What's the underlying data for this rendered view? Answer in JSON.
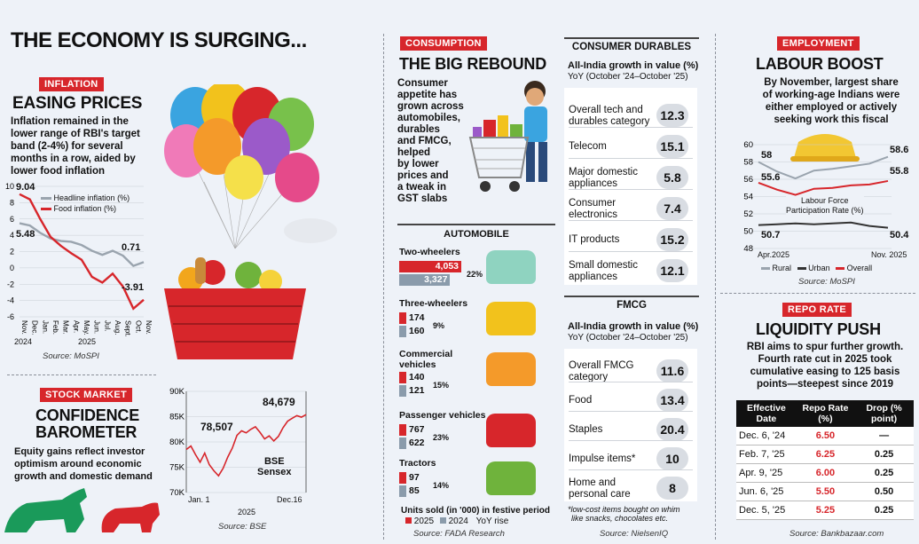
{
  "main_title": "THE ECONOMY IS SURGING...",
  "inflation": {
    "tag": "INFLATION",
    "title": "EASING PRICES",
    "body": [
      "Inflation remained in the",
      "lower range of RBI's target",
      "band (2-4%) for several",
      "months in a row, aided by",
      "lower food inflation"
    ],
    "legend_headline": "Headline inflation (%)",
    "legend_food": "Food inflation (%)",
    "source": "Source: MoSPI",
    "labels": {
      "food_start": "9.04",
      "head_start": "5.48",
      "head_end": "0.71",
      "food_end": "-3.91"
    },
    "year1": "2024",
    "year2": "2025"
  },
  "stock": {
    "tag": "STOCK MARKET",
    "title1": "CONFIDENCE",
    "title2": "BAROMETER",
    "body": [
      "Equity gains reflect investor",
      "optimism around economic",
      "growth and domestic demand"
    ],
    "label1": "78,507",
    "label2": "84,679",
    "index_name1": "BSE",
    "index_name2": "Sensex",
    "xstart": "Jan. 1",
    "xend": "Dec.16",
    "year": "2025",
    "source": "Source: BSE"
  },
  "consumption": {
    "tag": "CONSUMPTION",
    "title": "THE BIG REBOUND",
    "body": [
      "Consumer",
      "appetite has",
      "grown across",
      "automobiles,",
      "durables",
      "and FMCG,",
      "helped",
      "by lower",
      "prices and",
      "a tweak in",
      "GST slabs"
    ],
    "auto_head": "AUTOMOBILE",
    "units_note": "Units sold (in '000) in festive period",
    "legend_2025": "2025",
    "legend_2024": "2024",
    "legend_yoy": "YoY rise",
    "source": "Source: FADA Research"
  },
  "durables": {
    "head": "CONSUMER DURABLES",
    "sub1": "All-India growth in value (%)",
    "sub2": "YoY (October '24–October '25)",
    "rows": [
      {
        "label1": "Overall tech and",
        "label2": "durables category",
        "value": "12.3"
      },
      {
        "label1": "Telecom",
        "label2": "",
        "value": "15.1"
      },
      {
        "label1": "Major domestic",
        "label2": "appliances",
        "value": "5.8"
      },
      {
        "label1": "Consumer",
        "label2": "electronics",
        "value": "7.4"
      },
      {
        "label1": "IT products",
        "label2": "",
        "value": "15.2"
      },
      {
        "label1": "Small domestic",
        "label2": "appliances",
        "value": "12.1"
      }
    ]
  },
  "fmcg": {
    "head": "FMCG",
    "sub1": "All-India growth in value (%)",
    "sub2": "YoY (October '24–October '25)",
    "rows": [
      {
        "label1": "Overall FMCG",
        "label2": "category",
        "value": "11.6"
      },
      {
        "label1": "Food",
        "label2": "",
        "value": "13.4"
      },
      {
        "label1": "Staples",
        "label2": "",
        "value": "20.4"
      },
      {
        "label1": "Impulse items*",
        "label2": "",
        "value": "10"
      },
      {
        "label1": "Home and",
        "label2": "personal care",
        "value": "8"
      }
    ],
    "note1": "*low-cost items bought on whim",
    "note2": "like snacks, chocolates etc.",
    "source": "Source: NielsenIQ"
  },
  "employment": {
    "tag": "EMPLOYMENT",
    "title": "LABOUR BOOST",
    "body": [
      "By November, largest share",
      "of working-age Indians were",
      "either employed or actively",
      "seeking work this fiscal"
    ],
    "lfpr1": "Labour Force",
    "lfpr2": "Participation Rate (%)",
    "labels": {
      "rural_start": "58",
      "rural_end": "58.6",
      "overall_start": "55.6",
      "overall_end": "55.8",
      "urban_start": "50.7",
      "urban_end": "50.4"
    },
    "xstart": "Apr.2025",
    "xend": "Nov. 2025",
    "legend_rural": "Rural",
    "legend_urban": "Urban",
    "legend_overall": "Overall",
    "source": "Source: MoSPI"
  },
  "repo": {
    "tag": "REPO RATE",
    "title": "LIQUIDITY PUSH",
    "body": [
      "RBI aims to spur further growth.",
      "Fourth rate cut in 2025 took",
      "cumulative easing to 125 basis",
      "points—steepest since 2019"
    ],
    "col1": "Effective Date",
    "col2": "Repo Rate (%)",
    "col3": "Drop (% point)",
    "rows": [
      {
        "date": "Dec. 6, '24",
        "rate": "6.50",
        "drop": "—"
      },
      {
        "date": "Feb. 7, '25",
        "rate": "6.25",
        "drop": "0.25"
      },
      {
        "date": "Apr. 9, '25",
        "rate": "6.00",
        "drop": "0.25"
      },
      {
        "date": "Jun. 6, '25",
        "rate": "5.50",
        "drop": "0.50"
      },
      {
        "date": "Dec. 5, '25",
        "rate": "5.25",
        "drop": "0.25"
      }
    ],
    "source": "Source: Bankbazaar.com"
  },
  "chart_data": [
    {
      "type": "line",
      "x": [
        "Nov.",
        "Dec.",
        "Jan.",
        "Feb.",
        "Mar.",
        "Apr.",
        "May.",
        "Jun.",
        "Jul.",
        "Aug.",
        "Sept.",
        "Oct.",
        "Nov."
      ],
      "series": [
        {
          "name": "Headline inflation (%)",
          "values": [
            5.48,
            5.2,
            4.3,
            3.6,
            3.3,
            3.2,
            2.8,
            2.1,
            1.6,
            2.1,
            1.5,
            0.25,
            0.71
          ]
        },
        {
          "name": "Food inflation (%)",
          "values": [
            9.04,
            8.4,
            6.0,
            3.8,
            2.7,
            1.8,
            0.99,
            -1.1,
            -1.8,
            -0.7,
            -2.3,
            -5.0,
            -3.91
          ]
        }
      ],
      "yticks": [
        "10",
        "8",
        "6",
        "4",
        "2",
        "0",
        "-2",
        "-4",
        "-6"
      ],
      "ylim": [
        -6,
        10
      ]
    },
    {
      "type": "line",
      "series": [
        {
          "name": "BSE Sensex",
          "values": [
            78507,
            79200,
            77500,
            76000,
            77800,
            75500,
            74300,
            73300,
            74800,
            77000,
            78800,
            81300,
            82200,
            81800,
            82500,
            83000,
            81900,
            80600,
            81200,
            80200,
            81100,
            82800,
            84100,
            84679,
            85200,
            84900,
            85400
          ]
        }
      ],
      "yticks": [
        "90K",
        "85K",
        "80K",
        "75K",
        "70K"
      ],
      "ylim": [
        70000,
        90000
      ]
    },
    {
      "type": "bar",
      "categories": [
        "Two-wheelers",
        "Three-wheelers",
        "Commercial vehicles",
        "Passenger vehicles",
        "Tractors"
      ],
      "series": [
        {
          "name": "2025",
          "values": [
            4053,
            174,
            140,
            767,
            97
          ]
        },
        {
          "name": "2024",
          "values": [
            3327,
            160,
            121,
            622,
            85
          ]
        }
      ],
      "yoy": [
        "22%",
        "9%",
        "15%",
        "23%",
        "14%"
      ]
    },
    {
      "type": "line",
      "x": [
        "Apr.2025",
        "May",
        "Jun",
        "Jul",
        "Aug",
        "Sep",
        "Oct",
        "Nov. 2025"
      ],
      "series": [
        {
          "name": "Rural",
          "values": [
            58.0,
            56.9,
            56.1,
            57.0,
            57.2,
            57.5,
            57.8,
            58.6
          ]
        },
        {
          "name": "Urban",
          "values": [
            50.7,
            50.8,
            50.9,
            50.8,
            50.9,
            51.0,
            50.6,
            50.4
          ]
        },
        {
          "name": "Overall",
          "values": [
            55.6,
            54.8,
            54.2,
            54.9,
            55.0,
            55.3,
            55.4,
            55.8
          ]
        }
      ],
      "yticks": [
        "60",
        "58",
        "56",
        "54",
        "52",
        "50",
        "48"
      ],
      "ylim": [
        48,
        60
      ]
    }
  ]
}
